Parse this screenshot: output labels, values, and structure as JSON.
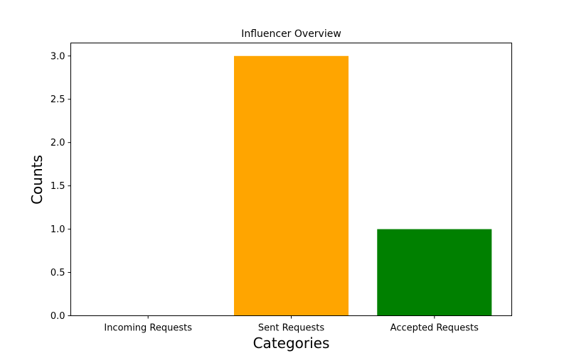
{
  "chart_data": {
    "type": "bar",
    "title": "Influencer Overview",
    "xlabel": "Categories",
    "ylabel": "Counts",
    "categories": [
      "Incoming Requests",
      "Sent Requests",
      "Accepted Requests"
    ],
    "values": [
      0,
      3,
      1
    ],
    "colors": [
      "#1f77b4",
      "#ffa500",
      "#008000"
    ],
    "ylim": [
      0,
      3.15
    ],
    "yticks": [
      0.0,
      0.5,
      1.0,
      1.5,
      2.0,
      2.5,
      3.0
    ],
    "ytick_labels": [
      "0.0",
      "0.5",
      "1.0",
      "1.5",
      "2.0",
      "2.5",
      "3.0"
    ],
    "grid": false,
    "legend": "none"
  }
}
